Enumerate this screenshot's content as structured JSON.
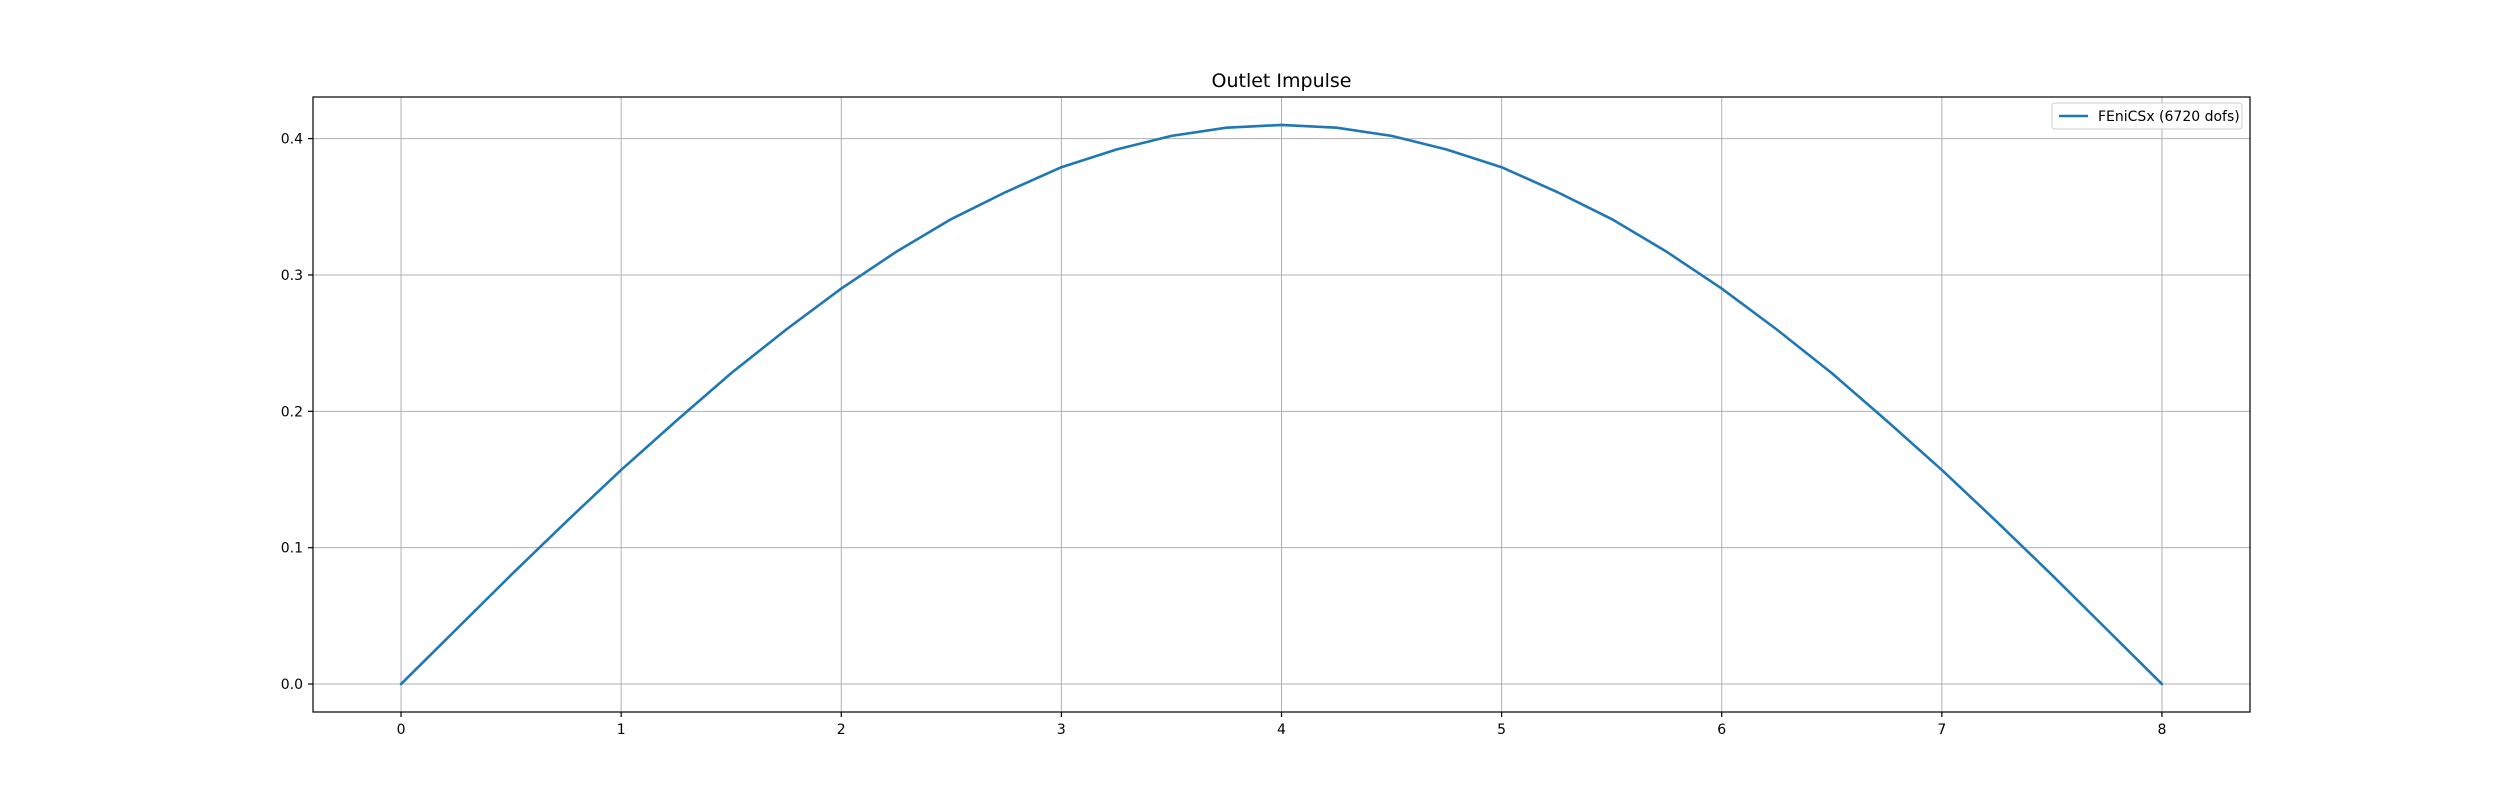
{
  "colors": {
    "series": "#1f77b4",
    "grid": "#b0b0b0",
    "axes": "#000000",
    "background": "#ffffff",
    "legend_border": "#cccccc"
  },
  "chart_data": {
    "type": "line",
    "title": "Outlet Impulse",
    "xlabel": "",
    "ylabel": "",
    "xlim": [
      -0.4,
      8.4
    ],
    "ylim": [
      -0.0205,
      0.4305
    ],
    "xticks": [
      0,
      1,
      2,
      3,
      4,
      5,
      6,
      7,
      8
    ],
    "yticks": [
      0.0,
      0.1,
      0.2,
      0.3,
      0.4
    ],
    "xtick_labels": [
      "0",
      "1",
      "2",
      "3",
      "4",
      "5",
      "6",
      "7",
      "8"
    ],
    "ytick_labels": [
      "0.0",
      "0.1",
      "0.2",
      "0.3",
      "0.4"
    ],
    "grid": true,
    "legend": {
      "position": "top-right",
      "entries": [
        "FEniCSx (6720 dofs)"
      ]
    },
    "series": [
      {
        "name": "FEniCSx (6720 dofs)",
        "x": [
          0,
          0.25,
          0.5,
          0.75,
          1,
          1.25,
          1.5,
          1.75,
          2,
          2.25,
          2.5,
          2.75,
          3,
          3.25,
          3.5,
          3.75,
          4,
          4.25,
          4.5,
          4.75,
          5,
          5.25,
          5.5,
          5.75,
          6,
          6.25,
          6.5,
          6.75,
          7,
          7.25,
          7.5,
          7.75,
          8
        ],
        "y": [
          0.0,
          0.04,
          0.08,
          0.119,
          0.157,
          0.193,
          0.228,
          0.26,
          0.29,
          0.317,
          0.341,
          0.361,
          0.379,
          0.392,
          0.402,
          0.408,
          0.41,
          0.408,
          0.402,
          0.392,
          0.379,
          0.361,
          0.341,
          0.317,
          0.29,
          0.26,
          0.228,
          0.193,
          0.157,
          0.119,
          0.08,
          0.04,
          0.0
        ]
      }
    ]
  }
}
